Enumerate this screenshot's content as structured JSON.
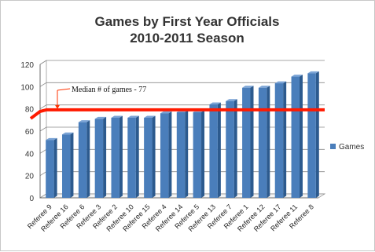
{
  "chart_data": {
    "type": "bar",
    "title_lines": [
      "Games by First Year Officials",
      "2010-2011 Season"
    ],
    "categories": [
      "Referee 9",
      "Referee 16",
      "Referee 6",
      "Referee 3",
      "Referee 2",
      "Referee 10",
      "Referee 15",
      "Referee 4",
      "Referee 14",
      "Referee 5",
      "Referee 13",
      "Referee 7",
      "Referee 1",
      "Referee 12",
      "Referee 17",
      "Referee 11",
      "Referee 8"
    ],
    "series": [
      {
        "name": "Games",
        "values": [
          52,
          57,
          68,
          71,
          72,
          72,
          72,
          76,
          77,
          77,
          84,
          87,
          99,
          99,
          103,
          109,
          112
        ]
      }
    ],
    "ylim": [
      0,
      120
    ],
    "yticks": [
      0,
      20,
      40,
      60,
      80,
      100,
      120
    ],
    "grid": true,
    "legend_position": "right",
    "reference_line": {
      "value": 77,
      "label": "Median # of games - 77",
      "color": "#ff1a00"
    },
    "colors": {
      "bar": "#4a7ebb",
      "bar_dark": "#2c5a8e",
      "bar_light": "#7ba4d6",
      "grid": "#8a8a8a"
    }
  }
}
